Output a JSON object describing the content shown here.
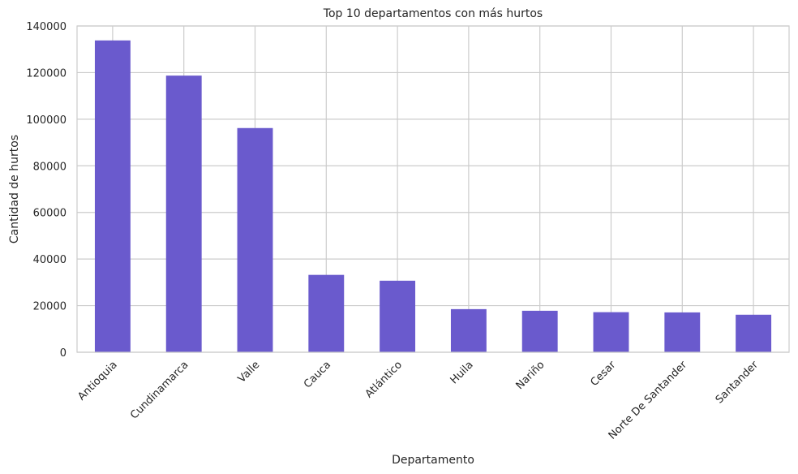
{
  "chart_data": {
    "type": "bar",
    "title": "Top 10 departamentos con más hurtos",
    "xlabel": "Departamento",
    "ylabel": "Cantidad de hurtos",
    "categories": [
      "Antioquia",
      "Cundinamarca",
      "Valle",
      "Cauca",
      "Atlántico",
      "Huila",
      "Nariño",
      "Cesar",
      "Norte De Santander",
      "Santander"
    ],
    "values": [
      133800,
      118700,
      96200,
      33200,
      30700,
      18500,
      17800,
      17200,
      17100,
      16100
    ],
    "ylim": [
      0,
      140000
    ],
    "yticks": [
      0,
      20000,
      40000,
      60000,
      80000,
      100000,
      120000,
      140000
    ],
    "ytick_labels": [
      "0",
      "20000",
      "40000",
      "60000",
      "80000",
      "100000",
      "120000",
      "140000"
    ],
    "bar_color": "#6a5acd",
    "grid": true,
    "legend": "none"
  }
}
